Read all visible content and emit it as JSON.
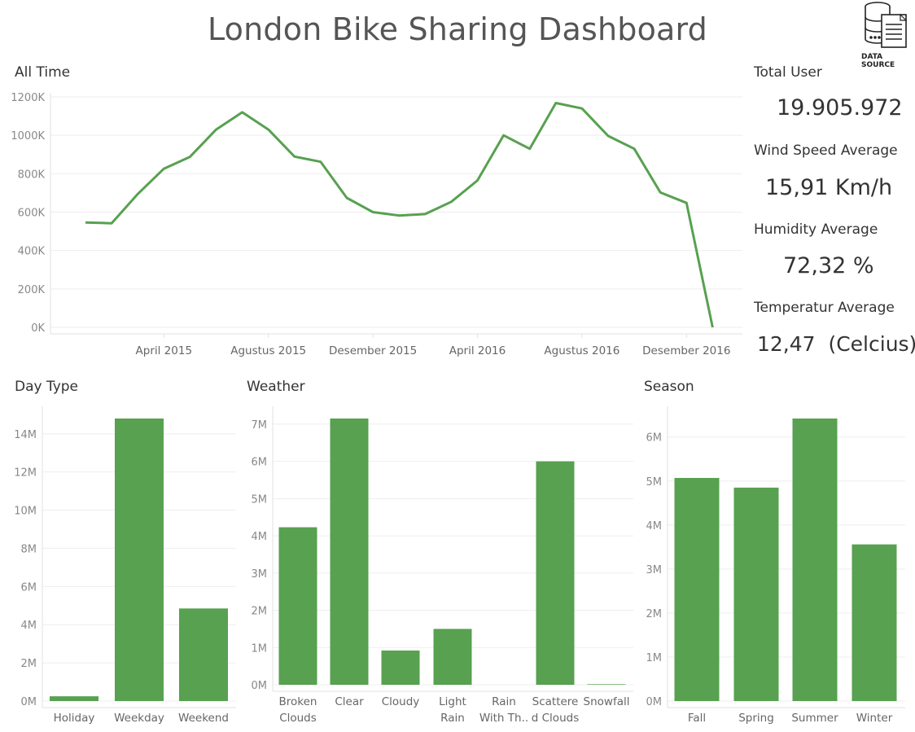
{
  "title": "London Bike Sharing Dashboard",
  "data_source_label": "DATA SOURCE",
  "colors": {
    "bar": "#57a150",
    "line": "#57a150"
  },
  "kpis": [
    {
      "label": "Total User",
      "value": "19.905.972"
    },
    {
      "label": "Wind Speed Average",
      "value": "15,91 Km/h"
    },
    {
      "label": "Humidity Average",
      "value": "72,32 %"
    },
    {
      "label": "Temperatur Average",
      "value": "12,47  (Celcius)"
    }
  ],
  "chart_data": [
    {
      "type": "line",
      "title": "All Time",
      "x": [
        "2015-01",
        "2015-02",
        "2015-03",
        "2015-04",
        "2015-05",
        "2015-06",
        "2015-07",
        "2015-08",
        "2015-09",
        "2015-10",
        "2015-11",
        "2015-12",
        "2016-01",
        "2016-02",
        "2016-03",
        "2016-04",
        "2016-05",
        "2016-06",
        "2016-07",
        "2016-08",
        "2016-09",
        "2016-10",
        "2016-11",
        "2016-12",
        "2017-01"
      ],
      "x_tick_labels": [
        {
          "at": "2015-04",
          "label": "April 2015"
        },
        {
          "at": "2015-08",
          "label": "Agustus 2015"
        },
        {
          "at": "2015-12",
          "label": "Desember 2015"
        },
        {
          "at": "2016-04",
          "label": "April 2016"
        },
        {
          "at": "2016-08",
          "label": "Agustus 2016"
        },
        {
          "at": "2016-12",
          "label": "Desember 2016"
        }
      ],
      "series": [
        {
          "values": [
            546000,
            542000,
            694000,
            826000,
            888000,
            1030000,
            1120000,
            1030000,
            889000,
            862000,
            674000,
            600000,
            582000,
            590000,
            654000,
            765000,
            1000000,
            930000,
            1168000,
            1140000,
            997000,
            930000,
            702000,
            648000,
            0
          ]
        }
      ],
      "ylim": [
        0,
        1200000
      ],
      "y_ticks": [
        0,
        200000,
        400000,
        600000,
        800000,
        1000000,
        1200000
      ],
      "y_tick_labels": [
        "0K",
        "200K",
        "400K",
        "600K",
        "800K",
        "1000K",
        "1200K"
      ],
      "grid": true
    },
    {
      "type": "bar",
      "title": "Day Type",
      "categories": [
        [
          "Holiday"
        ],
        [
          "Weekday"
        ],
        [
          "Weekend"
        ]
      ],
      "values": [
        250000,
        14800000,
        4850000
      ],
      "ylim": [
        0,
        14800000
      ],
      "y_ticks": [
        0,
        2000000,
        4000000,
        6000000,
        8000000,
        10000000,
        12000000,
        14000000
      ],
      "y_tick_labels": [
        "0M",
        "2M",
        "4M",
        "6M",
        "8M",
        "10M",
        "12M",
        "14M"
      ],
      "grid": true
    },
    {
      "type": "bar",
      "title": "Weather",
      "categories": [
        [
          "Broken",
          "Clouds"
        ],
        [
          "Clear"
        ],
        [
          "Cloudy"
        ],
        [
          "Light",
          "Rain"
        ],
        [
          "Rain",
          "With Th.."
        ],
        [
          "Scattere",
          "d Clouds"
        ],
        [
          "Snowfall"
        ]
      ],
      "values": [
        4230000,
        7150000,
        920000,
        1500000,
        0,
        6000000,
        15000
      ],
      "ylim": [
        0,
        7150000
      ],
      "y_ticks": [
        0,
        1000000,
        2000000,
        3000000,
        4000000,
        5000000,
        6000000,
        7000000
      ],
      "y_tick_labels": [
        "0M",
        "1M",
        "2M",
        "3M",
        "4M",
        "5M",
        "6M",
        "7M"
      ],
      "grid": true
    },
    {
      "type": "bar",
      "title": "Season",
      "categories": [
        [
          "Fall"
        ],
        [
          "Spring"
        ],
        [
          "Summer"
        ],
        [
          "Winter"
        ]
      ],
      "values": [
        5070000,
        4850000,
        6420000,
        3560000
      ],
      "ylim": [
        0,
        6420000
      ],
      "y_ticks": [
        0,
        1000000,
        2000000,
        3000000,
        4000000,
        5000000,
        6000000
      ],
      "y_tick_labels": [
        "0M",
        "1M",
        "2M",
        "3M",
        "4M",
        "5M",
        "6M"
      ],
      "grid": true
    }
  ]
}
